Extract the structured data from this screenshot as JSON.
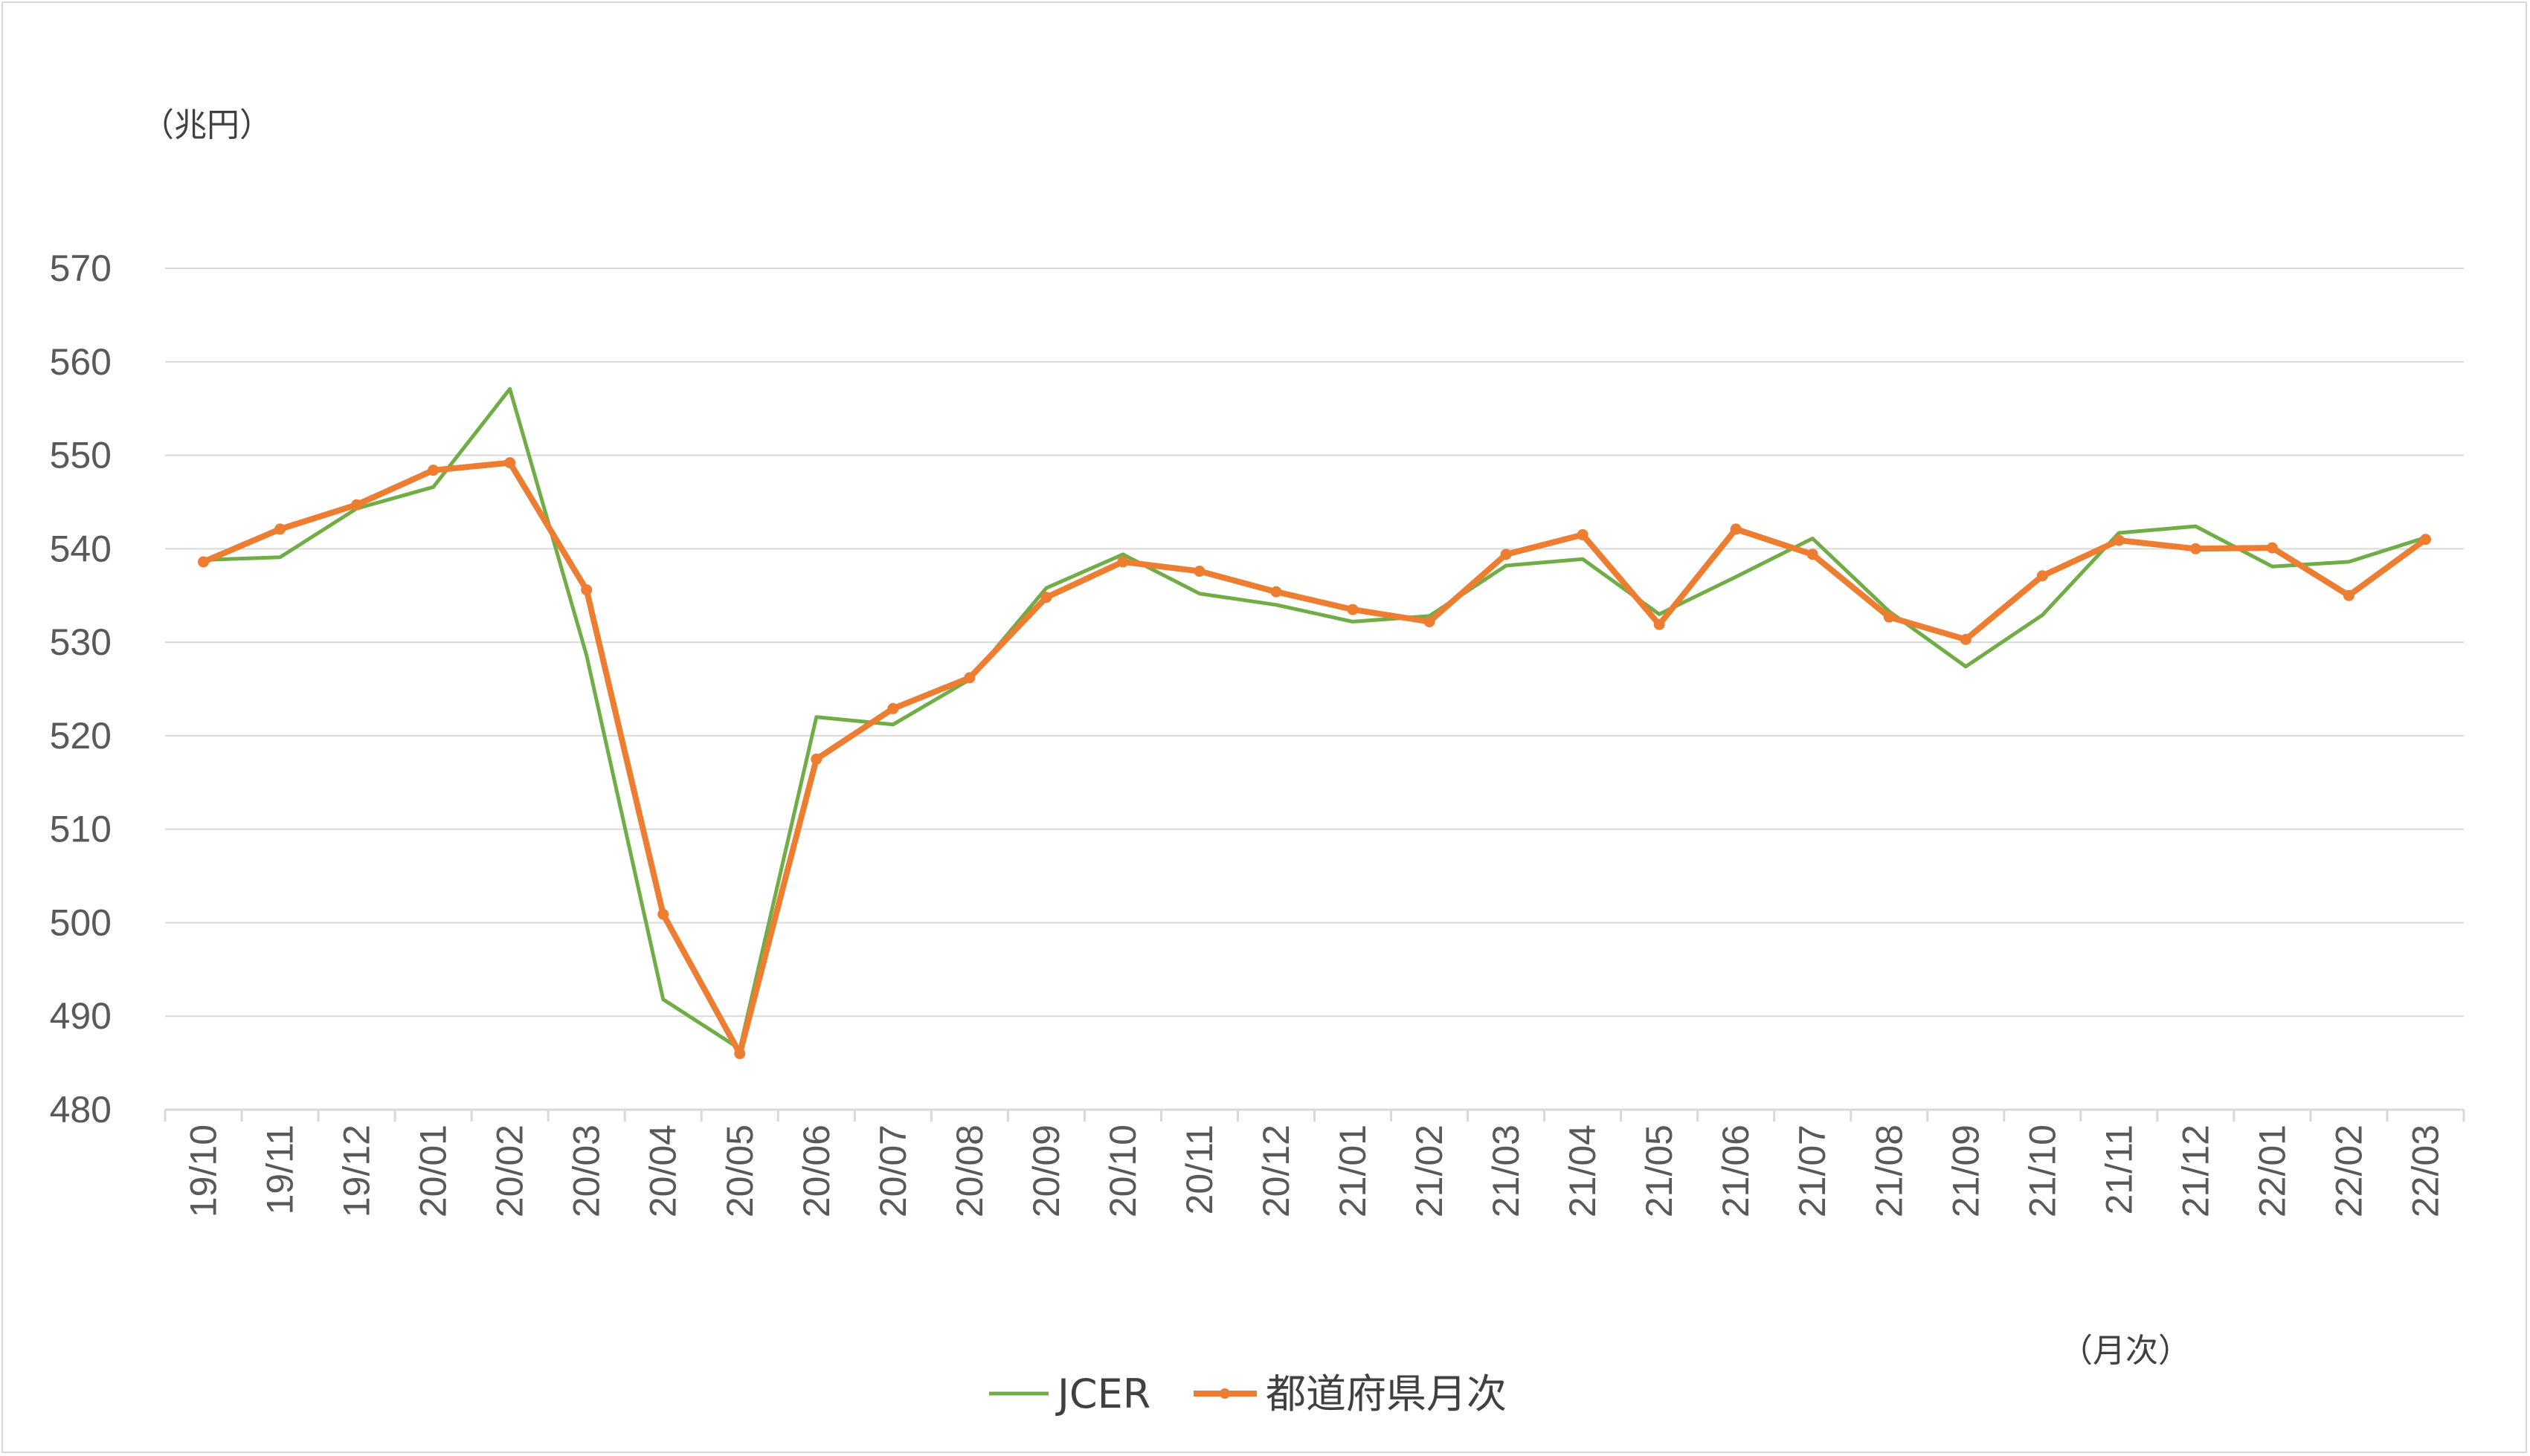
{
  "chart_data": {
    "type": "line",
    "y_unit_label": "（兆円）",
    "x_unit_label": "（月次）",
    "ylim": [
      480,
      570
    ],
    "y_ticks": [
      480,
      490,
      500,
      510,
      520,
      530,
      540,
      550,
      560,
      570
    ],
    "grid": "horizontal",
    "legend_position": "bottom",
    "categories": [
      "19/10",
      "19/11",
      "19/12",
      "20/01",
      "20/02",
      "20/03",
      "20/04",
      "20/05",
      "20/06",
      "20/07",
      "20/08",
      "20/09",
      "20/10",
      "20/11",
      "20/12",
      "21/01",
      "21/02",
      "21/03",
      "21/04",
      "21/05",
      "21/06",
      "21/07",
      "21/08",
      "21/09",
      "21/10",
      "21/11",
      "21/12",
      "22/01",
      "22/02",
      "22/03"
    ],
    "series": [
      {
        "name": "JCER",
        "color": "#70ad47",
        "markers": false,
        "values": [
          538.8,
          539.1,
          544.3,
          546.6,
          557.1,
          528.6,
          491.8,
          486.5,
          522.0,
          521.2,
          526.0,
          535.8,
          539.4,
          535.2,
          534.0,
          532.2,
          532.8,
          538.2,
          538.9,
          533.0,
          537.0,
          541.1,
          533.3,
          527.4,
          532.9,
          541.7,
          542.4,
          538.1,
          538.6,
          541.2
        ]
      },
      {
        "name": "都道府県月次",
        "color": "#ed7d31",
        "markers": true,
        "values": [
          538.6,
          542.1,
          544.7,
          548.4,
          549.2,
          535.6,
          500.9,
          486.0,
          517.5,
          522.9,
          526.2,
          534.8,
          538.6,
          537.6,
          535.4,
          533.5,
          532.2,
          539.4,
          541.5,
          531.9,
          542.1,
          539.4,
          532.7,
          530.3,
          537.1,
          540.9,
          540.0,
          540.1,
          535.0,
          541.0
        ]
      }
    ]
  }
}
